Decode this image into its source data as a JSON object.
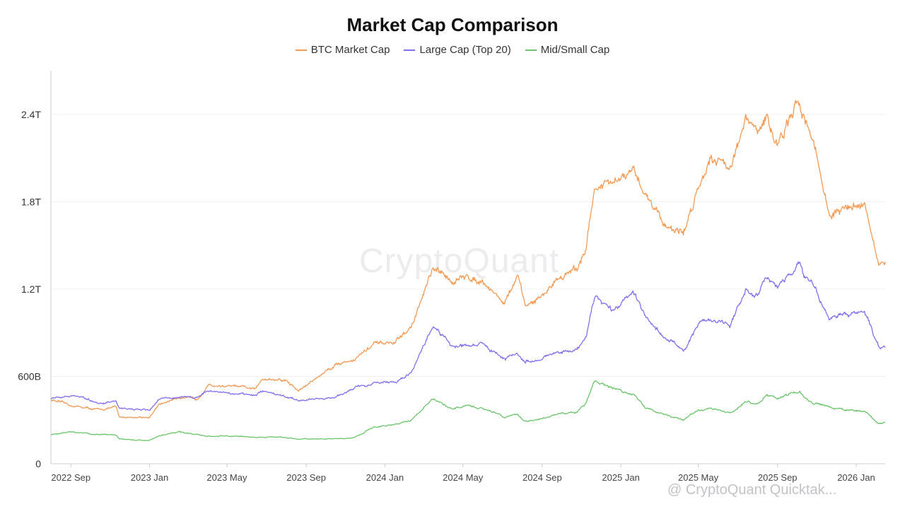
{
  "chart_data": {
    "type": "line",
    "title": "Market Cap Comparison",
    "watermark": "CryptoQuant",
    "footer_watermark": "@ CryptoQuant Quicktak...",
    "colors": {
      "btc": "#f39a55",
      "large": "#8070ee",
      "mid": "#6cc56c"
    },
    "x_tick_labels": [
      "2022 Sep",
      "2023 Jan",
      "2023 May",
      "2023 Sep",
      "2024 Jan",
      "2024 May",
      "2024 Sep",
      "2025 Jan",
      "2025 May",
      "2025 Sep",
      "2026 Jan"
    ],
    "y_tick_labels": [
      "0",
      "600B",
      "1.2T",
      "1.8T",
      "2.4T"
    ],
    "y_tick_values": [
      0,
      600,
      1200,
      1800,
      2400
    ],
    "ylim": [
      0,
      2700
    ],
    "x_range": [
      "2022-08-01",
      "2026-02-15"
    ],
    "y_unit": "B",
    "series": [
      {
        "name": "BTC Market Cap",
        "color": "#f39a55",
        "x": [
          "2022-08-01",
          "2022-09-01",
          "2022-10-15",
          "2022-11-10",
          "2022-11-15",
          "2023-01-01",
          "2023-01-15",
          "2023-02-15",
          "2023-03-15",
          "2023-04-01",
          "2023-05-15",
          "2023-06-15",
          "2023-06-25",
          "2023-08-01",
          "2023-08-20",
          "2023-10-15",
          "2023-11-15",
          "2023-12-15",
          "2024-01-15",
          "2024-02-10",
          "2024-03-15",
          "2024-04-15",
          "2024-05-10",
          "2024-06-01",
          "2024-07-05",
          "2024-07-25",
          "2024-08-05",
          "2024-09-01",
          "2024-09-25",
          "2024-10-25",
          "2024-11-08",
          "2024-11-22",
          "2024-12-20",
          "2025-01-20",
          "2025-02-10",
          "2025-03-10",
          "2025-04-08",
          "2025-05-01",
          "2025-05-20",
          "2025-06-20",
          "2025-07-14",
          "2025-08-01",
          "2025-08-14",
          "2025-09-01",
          "2025-10-06",
          "2025-10-12",
          "2025-10-25",
          "2025-11-21",
          "2025-12-15",
          "2026-01-14",
          "2026-02-05",
          "2026-02-15"
        ],
        "values": [
          440,
          400,
          370,
          390,
          320,
          320,
          400,
          460,
          440,
          540,
          530,
          510,
          590,
          570,
          500,
          680,
          720,
          820,
          830,
          930,
          1330,
          1260,
          1280,
          1260,
          1100,
          1290,
          1080,
          1150,
          1280,
          1330,
          1500,
          1900,
          1920,
          2000,
          1850,
          1650,
          1580,
          1900,
          2120,
          2050,
          2350,
          2280,
          2370,
          2200,
          2480,
          2400,
          2250,
          1700,
          1750,
          1800,
          1350,
          1350
        ]
      },
      {
        "name": "Large Cap (Top 20)",
        "color": "#8070ee",
        "x": [
          "2022-08-01",
          "2022-09-01",
          "2022-10-15",
          "2022-11-10",
          "2022-11-15",
          "2023-01-01",
          "2023-01-15",
          "2023-02-15",
          "2023-03-15",
          "2023-04-01",
          "2023-05-15",
          "2023-06-15",
          "2023-06-25",
          "2023-08-01",
          "2023-08-20",
          "2023-10-15",
          "2023-11-15",
          "2023-12-15",
          "2024-01-15",
          "2024-02-10",
          "2024-03-15",
          "2024-04-15",
          "2024-05-10",
          "2024-06-01",
          "2024-07-05",
          "2024-07-25",
          "2024-08-05",
          "2024-09-01",
          "2024-09-25",
          "2024-10-25",
          "2024-11-08",
          "2024-11-22",
          "2024-12-20",
          "2025-01-20",
          "2025-02-10",
          "2025-03-10",
          "2025-04-08",
          "2025-05-01",
          "2025-05-20",
          "2025-06-20",
          "2025-07-14",
          "2025-08-01",
          "2025-08-14",
          "2025-09-01",
          "2025-10-06",
          "2025-10-12",
          "2025-10-25",
          "2025-11-21",
          "2025-12-15",
          "2026-01-14",
          "2026-02-05",
          "2026-02-15"
        ],
        "values": [
          450,
          470,
          420,
          430,
          380,
          370,
          440,
          460,
          450,
          500,
          480,
          470,
          500,
          460,
          440,
          450,
          520,
          560,
          560,
          620,
          950,
          800,
          820,
          820,
          720,
          760,
          700,
          720,
          770,
          780,
          880,
          1150,
          1050,
          1180,
          1000,
          870,
          780,
          950,
          1000,
          950,
          1200,
          1150,
          1280,
          1200,
          1400,
          1300,
          1250,
          1000,
          1020,
          1050,
          800,
          800
        ]
      },
      {
        "name": "Mid/Small Cap",
        "color": "#6cc56c",
        "x": [
          "2022-08-01",
          "2022-09-01",
          "2022-10-15",
          "2022-11-10",
          "2022-11-15",
          "2023-01-01",
          "2023-01-15",
          "2023-02-15",
          "2023-03-15",
          "2023-04-01",
          "2023-05-15",
          "2023-06-15",
          "2023-06-25",
          "2023-08-01",
          "2023-08-20",
          "2023-10-15",
          "2023-11-15",
          "2023-12-15",
          "2024-01-15",
          "2024-02-10",
          "2024-03-15",
          "2024-04-15",
          "2024-05-10",
          "2024-06-01",
          "2024-07-05",
          "2024-07-25",
          "2024-08-05",
          "2024-09-01",
          "2024-09-25",
          "2024-10-25",
          "2024-11-08",
          "2024-11-22",
          "2024-12-20",
          "2025-01-20",
          "2025-02-10",
          "2025-03-10",
          "2025-04-08",
          "2025-05-01",
          "2025-05-20",
          "2025-06-20",
          "2025-07-14",
          "2025-08-01",
          "2025-08-14",
          "2025-09-01",
          "2025-10-06",
          "2025-10-12",
          "2025-10-25",
          "2025-11-21",
          "2025-12-15",
          "2026-01-14",
          "2026-02-05",
          "2026-02-15"
        ],
        "values": [
          200,
          220,
          200,
          200,
          170,
          160,
          190,
          220,
          200,
          190,
          190,
          180,
          185,
          180,
          170,
          170,
          180,
          250,
          270,
          300,
          440,
          380,
          400,
          380,
          320,
          340,
          290,
          310,
          340,
          350,
          420,
          570,
          520,
          480,
          380,
          340,
          300,
          370,
          380,
          350,
          430,
          410,
          470,
          450,
          500,
          460,
          420,
          390,
          370,
          360,
          280,
          280
        ]
      }
    ]
  }
}
